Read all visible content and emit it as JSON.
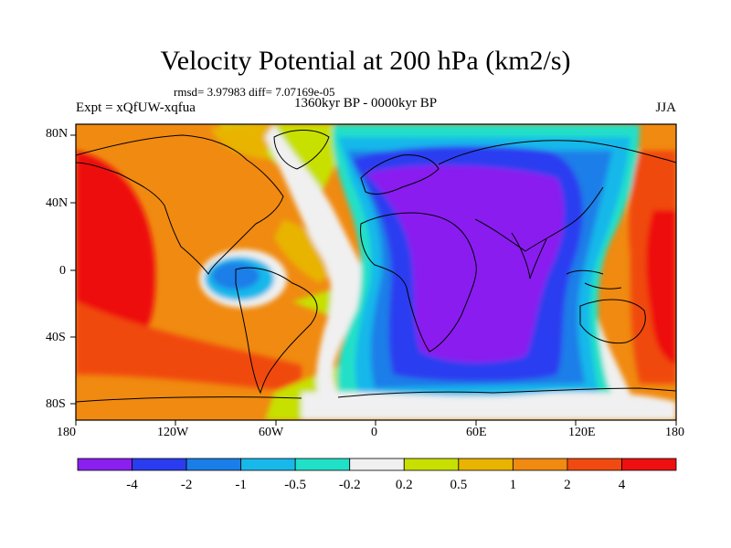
{
  "header": {
    "title": "Velocity Potential at 200 hPa (km2/s)",
    "stats": "rmsd= 3.97983 diff= 7.07169e-05",
    "experiment": "Expt = xQfUW-xqfua",
    "period": "1360kyr BP - 0000kyr BP",
    "season": "JJA"
  },
  "map": {
    "x_ticks": [
      "180",
      "120W",
      "60W",
      "0",
      "60E",
      "120E",
      "180"
    ],
    "y_ticks": [
      "80N",
      "40N",
      "0",
      "40S",
      "80S"
    ]
  },
  "colorbar": {
    "labels": [
      "-4",
      "-2",
      "-1",
      "-0.5",
      "-0.2",
      "0.2",
      "0.5",
      "1",
      "2",
      "4"
    ],
    "colors": [
      "#8a1ff0",
      "#2a3cf0",
      "#1a7ee8",
      "#18b8ea",
      "#20e0c8",
      "#f0f0f0",
      "#c8e000",
      "#e8b400",
      "#f08a10",
      "#f04a10",
      "#ee1010"
    ]
  }
}
